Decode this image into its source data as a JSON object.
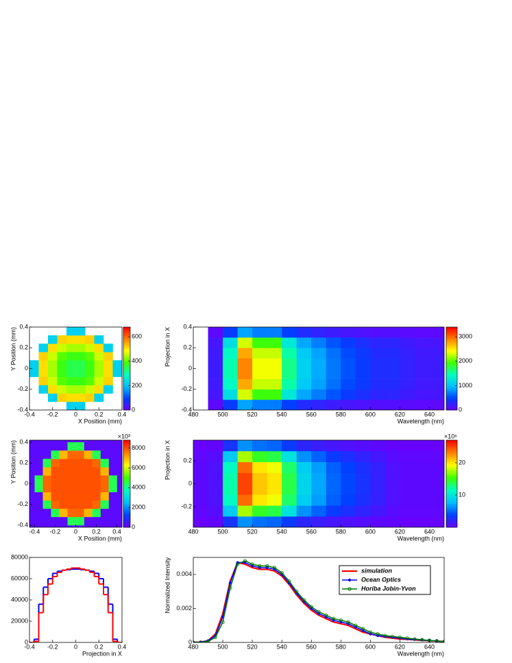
{
  "chart_data": [
    {
      "type": "heatmap",
      "xlabel": "X Position (mm)",
      "ylabel": "Y Position (mm)",
      "xlim": [
        -0.4,
        0.4
      ],
      "ylim": [
        -0.4,
        0.4
      ],
      "xticks": [
        -0.4,
        -0.2,
        0,
        0.2,
        0.4
      ],
      "yticks": [
        -0.4,
        -0.2,
        0,
        0.2,
        0.4
      ],
      "xbins": [
        -0.4,
        -0.32,
        -0.24,
        -0.16,
        -0.08,
        0,
        0.08,
        0.16,
        0.24,
        0.32,
        0.4
      ],
      "ybins": [
        -0.4,
        -0.32,
        -0.24,
        -0.16,
        -0.08,
        0,
        0.08,
        0.16,
        0.24,
        0.32,
        0.4
      ],
      "zlim": [
        0,
        680
      ],
      "zticks": [
        0,
        200,
        400,
        600
      ],
      "z": [
        [
          null,
          null,
          null,
          null,
          220,
          220,
          null,
          null,
          null,
          null
        ],
        [
          null,
          null,
          220,
          520,
          510,
          510,
          520,
          220,
          null,
          null
        ],
        [
          null,
          220,
          510,
          460,
          440,
          440,
          460,
          510,
          220,
          null
        ],
        [
          null,
          520,
          460,
          400,
          380,
          380,
          400,
          460,
          520,
          null
        ],
        [
          220,
          510,
          440,
          380,
          350,
          350,
          380,
          440,
          510,
          220
        ],
        [
          220,
          510,
          440,
          380,
          350,
          350,
          380,
          440,
          510,
          220
        ],
        [
          null,
          520,
          460,
          400,
          380,
          380,
          400,
          460,
          520,
          null
        ],
        [
          null,
          220,
          510,
          460,
          440,
          440,
          460,
          510,
          220,
          null
        ],
        [
          null,
          null,
          220,
          520,
          510,
          510,
          520,
          220,
          null,
          null
        ],
        [
          null,
          null,
          null,
          null,
          220,
          220,
          null,
          null,
          null,
          null
        ]
      ]
    },
    {
      "type": "heatmap",
      "xlabel": "Wavelength (nm)",
      "ylabel": "Projection in X",
      "xlim": [
        480,
        650
      ],
      "ylim": [
        -0.4,
        0.4
      ],
      "xticks": [
        480,
        500,
        520,
        540,
        560,
        580,
        600,
        620,
        640
      ],
      "yticks": [
        -0.4,
        -0.2,
        0,
        0.2,
        0.4
      ],
      "xbins": [
        480,
        490,
        500,
        510,
        520,
        530,
        540,
        550,
        560,
        570,
        580,
        590,
        600,
        610,
        620,
        630,
        640,
        650
      ],
      "ybins": [
        -0.4,
        -0.3,
        -0.2,
        -0.1,
        0,
        0.1,
        0.2,
        0.3,
        0.4
      ],
      "zlim": [
        0,
        3400
      ],
      "zticks": [
        0,
        1000,
        2000,
        3000
      ],
      "z": [
        [
          null,
          60,
          450,
          870,
          720,
          720,
          480,
          330,
          270,
          210,
          165,
          135,
          105,
          105,
          75,
          60,
          60
        ],
        [
          null,
          160,
          1200,
          2320,
          1920,
          1920,
          1280,
          880,
          720,
          560,
          440,
          360,
          280,
          280,
          200,
          160,
          160
        ],
        [
          null,
          190,
          1430,
          2760,
          2280,
          2280,
          1520,
          1050,
          860,
          670,
          520,
          430,
          330,
          330,
          240,
          190,
          190
        ],
        [
          null,
          200,
          1500,
          2900,
          2400,
          2400,
          1600,
          1100,
          900,
          700,
          550,
          450,
          350,
          350,
          250,
          200,
          200
        ],
        [
          null,
          200,
          1500,
          2900,
          2400,
          2400,
          1600,
          1100,
          900,
          700,
          550,
          450,
          350,
          350,
          250,
          200,
          200
        ],
        [
          null,
          190,
          1430,
          2760,
          2280,
          2280,
          1520,
          1050,
          860,
          670,
          520,
          430,
          330,
          330,
          240,
          190,
          190
        ],
        [
          null,
          160,
          1200,
          2320,
          1920,
          1920,
          1280,
          880,
          720,
          560,
          440,
          360,
          280,
          280,
          200,
          160,
          160
        ],
        [
          null,
          60,
          450,
          870,
          720,
          720,
          480,
          330,
          270,
          210,
          165,
          135,
          105,
          105,
          75,
          60,
          60
        ]
      ]
    },
    {
      "type": "heatmap",
      "xlabel": "X Position (mm)",
      "ylabel": "Y Position (mm)",
      "xlim": [
        -0.45,
        0.45
      ],
      "ylim": [
        -0.42,
        0.42
      ],
      "xticks": [
        -0.4,
        -0.2,
        0,
        0.2,
        0.4
      ],
      "yticks": [
        -0.4,
        -0.2,
        0,
        0.2,
        0.4
      ],
      "xbins": [
        -0.4,
        -0.32,
        -0.24,
        -0.16,
        -0.08,
        0,
        0.08,
        0.16,
        0.24,
        0.32,
        0.4
      ],
      "ybins": [
        -0.4,
        -0.32,
        -0.24,
        -0.16,
        -0.08,
        0,
        0.08,
        0.16,
        0.24,
        0.32,
        0.4
      ],
      "zlim": [
        0,
        8800
      ],
      "zticks": [
        0,
        2000,
        4000,
        6000,
        8000
      ],
      "zscale_label": "×10³",
      "z": [
        [
          null,
          null,
          null,
          null,
          4500,
          4500,
          null,
          null,
          null,
          null
        ],
        [
          null,
          null,
          4500,
          7000,
          7800,
          7800,
          7000,
          4500,
          null,
          null
        ],
        [
          null,
          4500,
          7800,
          8000,
          8000,
          8000,
          8000,
          7800,
          4500,
          null
        ],
        [
          null,
          7000,
          8000,
          8000,
          8000,
          8000,
          8000,
          8000,
          7000,
          null
        ],
        [
          4500,
          7800,
          8000,
          8000,
          8000,
          8000,
          8000,
          8000,
          7800,
          4500
        ],
        [
          4500,
          7800,
          8000,
          8000,
          8000,
          8000,
          8000,
          8000,
          7800,
          4500
        ],
        [
          null,
          7000,
          8000,
          8000,
          8000,
          8000,
          8000,
          8000,
          7000,
          null
        ],
        [
          null,
          4500,
          7800,
          8000,
          8000,
          8000,
          8000,
          7800,
          4500,
          null
        ],
        [
          null,
          null,
          4500,
          7000,
          7800,
          7800,
          7000,
          4500,
          null,
          null
        ],
        [
          null,
          null,
          null,
          null,
          4500,
          4500,
          null,
          null,
          null,
          null
        ]
      ]
    },
    {
      "type": "heatmap",
      "xlabel": "Wavelength (nm)",
      "ylabel": "Projection in X",
      "xlim": [
        480,
        650
      ],
      "ylim": [
        -0.38,
        0.38
      ],
      "xticks": [
        480,
        500,
        520,
        540,
        560,
        580,
        600,
        620,
        640
      ],
      "yticks": [
        -0.2,
        0,
        0.2
      ],
      "xbins": [
        480,
        490,
        500,
        510,
        520,
        530,
        540,
        550,
        560,
        570,
        580,
        590,
        600,
        610,
        620,
        630,
        640,
        650
      ],
      "ybins": [
        -0.38,
        -0.285,
        -0.19,
        -0.095,
        0,
        0.095,
        0.19,
        0.285,
        0.38
      ],
      "zlim": [
        0,
        27
      ],
      "zticks": [
        10,
        20
      ],
      "zscale_label": "×10⁶",
      "z": [
        [
          0.1,
          0.3,
          3,
          6.3,
          5.3,
          5,
          3.5,
          2.3,
          1.8,
          1.3,
          1,
          0.8,
          0.5,
          0.3,
          0.1,
          0.1,
          0.1
        ],
        [
          0.4,
          0.7,
          8.4,
          17.5,
          14.7,
          14,
          9.8,
          6.3,
          4.9,
          3.5,
          2.8,
          2.1,
          1.4,
          0.7,
          0.4,
          0.4,
          0.4
        ],
        [
          0.5,
          1,
          11.4,
          23.8,
          20,
          19,
          13.3,
          8.6,
          6.7,
          4.8,
          3.8,
          2.9,
          1.9,
          1,
          0.5,
          0.5,
          0.5
        ],
        [
          0.5,
          1,
          12,
          25,
          21,
          20,
          14,
          9,
          7,
          5,
          4,
          3,
          2,
          1,
          0.5,
          0.5,
          0.5
        ],
        [
          0.5,
          1,
          12,
          25,
          21,
          20,
          14,
          9,
          7,
          5,
          4,
          3,
          2,
          1,
          0.5,
          0.5,
          0.5
        ],
        [
          0.5,
          1,
          11.4,
          23.8,
          20,
          19,
          13.3,
          8.6,
          6.7,
          4.8,
          3.8,
          2.9,
          1.9,
          1,
          0.5,
          0.5,
          0.5
        ],
        [
          0.4,
          0.7,
          8.4,
          17.5,
          14.7,
          14,
          9.8,
          6.3,
          4.9,
          3.5,
          2.8,
          2.1,
          1.4,
          0.7,
          0.4,
          0.4,
          0.4
        ],
        [
          0.1,
          0.3,
          3,
          6.3,
          5.3,
          5,
          3.5,
          2.3,
          1.8,
          1.3,
          1,
          0.8,
          0.5,
          0.3,
          0.1,
          0.1,
          0.1
        ]
      ]
    },
    {
      "type": "histogram",
      "xlabel": "Projection in X",
      "xlim": [
        -0.4,
        0.4
      ],
      "ylim": [
        0,
        80000
      ],
      "xticks": [
        -0.4,
        -0.2,
        0,
        0.2,
        0.4
      ],
      "yticks": [
        0,
        20000,
        40000,
        60000,
        80000
      ],
      "bins": [
        -0.4,
        -0.36,
        -0.32,
        -0.28,
        -0.24,
        -0.2,
        -0.16,
        -0.12,
        -0.08,
        -0.04,
        0,
        0.04,
        0.08,
        0.12,
        0.16,
        0.2,
        0.24,
        0.28,
        0.32,
        0.36,
        0.4
      ],
      "series": [
        {
          "color": "#0000ff",
          "values": [
            0,
            3000,
            36000,
            52000,
            60000,
            65000,
            67000,
            68000,
            68500,
            69000,
            69000,
            68500,
            68000,
            67000,
            65000,
            60000,
            52000,
            36000,
            3000,
            0
          ]
        },
        {
          "color": "#ff0000",
          "values": [
            0,
            1000,
            28000,
            45000,
            55000,
            62000,
            66000,
            68000,
            69000,
            70000,
            70000,
            69000,
            68000,
            66000,
            62000,
            55000,
            45000,
            28000,
            1000,
            0
          ]
        }
      ]
    },
    {
      "type": "line",
      "xlabel": "Wavelength (nm)",
      "ylabel": "Normalized Intensity",
      "xlim": [
        480,
        650
      ],
      "ylim": [
        0,
        0.005
      ],
      "xticks": [
        480,
        500,
        520,
        540,
        560,
        580,
        600,
        620,
        640
      ],
      "yticks": [
        0,
        0.002,
        0.004
      ],
      "x": [
        480,
        485,
        490,
        495,
        500,
        505,
        510,
        515,
        520,
        525,
        530,
        535,
        540,
        545,
        550,
        555,
        560,
        565,
        570,
        575,
        580,
        585,
        590,
        595,
        600,
        605,
        610,
        615,
        620,
        625,
        630,
        635,
        640,
        645,
        650
      ],
      "series": [
        {
          "name": "simulation",
          "color": "#ff0000",
          "marker": "none",
          "values": [
            0,
            2e-05,
            0.0001,
            0.0005,
            0.0017,
            0.0036,
            0.0047,
            0.0046,
            0.0044,
            0.0043,
            0.0043,
            0.0042,
            0.0039,
            0.0034,
            0.0028,
            0.0023,
            0.0019,
            0.0016,
            0.0014,
            0.0012,
            0.0011,
            0.001,
            0.0008,
            0.0006,
            0.0005,
            0.0004,
            0.0003,
            0.00025,
            0.0002,
            0.00018,
            0.00015,
            0.00012,
            0.0001,
            8e-05,
            5e-05
          ]
        },
        {
          "name": "Ocean Optics",
          "color": "#0000ff",
          "marker": "dot",
          "values": [
            0,
            2e-05,
            0.0001,
            0.0004,
            0.0015,
            0.0035,
            0.0047,
            0.0047,
            0.0045,
            0.0044,
            0.0044,
            0.0043,
            0.004,
            0.0035,
            0.0029,
            0.0024,
            0.002,
            0.0017,
            0.0015,
            0.0013,
            0.0012,
            0.0011,
            0.0009,
            0.0007,
            0.0005,
            0.0004,
            0.00035,
            0.0003,
            0.00025,
            0.0002,
            0.00017,
            0.00014,
            0.00011,
            8e-05,
            4e-05
          ]
        },
        {
          "name": "Horiba Jobin-Yvon",
          "color": "#007700",
          "marker": "circle",
          "values": [
            0,
            1e-05,
            5e-05,
            0.0003,
            0.0012,
            0.0032,
            0.0046,
            0.0048,
            0.0046,
            0.0045,
            0.0045,
            0.0044,
            0.0041,
            0.0036,
            0.003,
            0.0025,
            0.0021,
            0.0018,
            0.0016,
            0.0014,
            0.0013,
            0.0012,
            0.001,
            0.0008,
            0.0006,
            0.0005,
            0.0004,
            0.00035,
            0.0003,
            0.00025,
            0.0002,
            0.00016,
            0.00012,
            9e-05,
            5e-05
          ]
        }
      ]
    }
  ]
}
